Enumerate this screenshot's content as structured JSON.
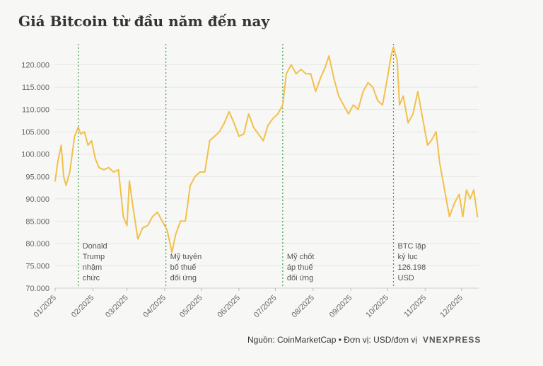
{
  "chart_data": {
    "type": "line",
    "title": "Giá Bitcoin từ đầu năm đến nay",
    "source": "Nguồn: CoinMarketCap • Đơn vị: USD/đơn vị",
    "logo_text": "VnExpress",
    "ylim": [
      70000,
      125000
    ],
    "yticks": [
      70000,
      75000,
      80000,
      85000,
      90000,
      95000,
      100000,
      105000,
      110000,
      115000,
      120000
    ],
    "ytick_labels": [
      "70.000",
      "75.000",
      "80.000",
      "85.000",
      "90.000",
      "95.000",
      "100.000",
      "105.000",
      "110.000",
      "115.000",
      "120.000"
    ],
    "xticks": [
      "2025-01-01",
      "2025-02-01",
      "2025-03-01",
      "2025-04-01",
      "2025-05-01",
      "2025-06-01",
      "2025-07-01",
      "2025-08-01",
      "2025-09-01",
      "2025-10-01",
      "2025-11-01",
      "2025-12-01"
    ],
    "xtick_labels": [
      "01/2025",
      "02/2025",
      "03/2025",
      "04/2025",
      "05/2025",
      "06/2025",
      "07/2025",
      "08/2025",
      "09/2025",
      "10/2025",
      "11/2025",
      "12/2025"
    ],
    "xlim": [
      "2025-01-01",
      "2025-12-15"
    ],
    "line_color": "#f2c04a",
    "annotation_line_color": "#3a9a4a",
    "series": [
      {
        "x": [
          "2025-01-01",
          "2025-01-03",
          "2025-01-06",
          "2025-01-08",
          "2025-01-10",
          "2025-01-13",
          "2025-01-15",
          "2025-01-17",
          "2025-01-20",
          "2025-01-22",
          "2025-01-25",
          "2025-01-28",
          "2025-01-31",
          "2025-02-03",
          "2025-02-06",
          "2025-02-10",
          "2025-02-14",
          "2025-02-18",
          "2025-02-22",
          "2025-02-26",
          "2025-03-01",
          "2025-03-03",
          "2025-03-06",
          "2025-03-10",
          "2025-03-14",
          "2025-03-18",
          "2025-03-22",
          "2025-03-26",
          "2025-03-30",
          "2025-04-03",
          "2025-04-07",
          "2025-04-10",
          "2025-04-14",
          "2025-04-18",
          "2025-04-22",
          "2025-04-26",
          "2025-04-30",
          "2025-05-04",
          "2025-05-08",
          "2025-05-12",
          "2025-05-16",
          "2025-05-20",
          "2025-05-24",
          "2025-05-28",
          "2025-06-01",
          "2025-06-05",
          "2025-06-09",
          "2025-06-13",
          "2025-06-17",
          "2025-06-21",
          "2025-06-25",
          "2025-06-29",
          "2025-07-03",
          "2025-07-07",
          "2025-07-10",
          "2025-07-14",
          "2025-07-18",
          "2025-07-22",
          "2025-07-26",
          "2025-07-30",
          "2025-08-03",
          "2025-08-07",
          "2025-08-11",
          "2025-08-14",
          "2025-08-18",
          "2025-08-22",
          "2025-08-26",
          "2025-08-30",
          "2025-09-03",
          "2025-09-07",
          "2025-09-11",
          "2025-09-15",
          "2025-09-19",
          "2025-09-23",
          "2025-09-27",
          "2025-10-01",
          "2025-10-04",
          "2025-10-06",
          "2025-10-09",
          "2025-10-11",
          "2025-10-14",
          "2025-10-18",
          "2025-10-22",
          "2025-10-26",
          "2025-10-30",
          "2025-11-03",
          "2025-11-06",
          "2025-11-10",
          "2025-11-13",
          "2025-11-17",
          "2025-11-21",
          "2025-11-25",
          "2025-11-29",
          "2025-12-02",
          "2025-12-05",
          "2025-12-08",
          "2025-12-11",
          "2025-12-14"
        ],
        "y": [
          94000,
          98000,
          102000,
          95000,
          93000,
          96000,
          100000,
          104000,
          106000,
          104500,
          105000,
          102000,
          103000,
          99000,
          97000,
          96500,
          97000,
          96000,
          96500,
          86000,
          84000,
          94000,
          88000,
          81000,
          83500,
          84000,
          86000,
          87000,
          85000,
          83000,
          78000,
          82000,
          85000,
          85000,
          93000,
          95000,
          96000,
          96000,
          103000,
          104000,
          105000,
          107000,
          109500,
          107000,
          104000,
          104500,
          109000,
          106000,
          104500,
          103000,
          106500,
          108000,
          109000,
          111000,
          118000,
          120000,
          118000,
          119000,
          118000,
          118000,
          114000,
          117000,
          119500,
          122000,
          117000,
          113000,
          111000,
          109000,
          111000,
          110000,
          114000,
          116000,
          115000,
          112000,
          111000,
          117000,
          122000,
          124000,
          121000,
          111000,
          113000,
          107000,
          109000,
          114000,
          108000,
          102000,
          103000,
          105000,
          98000,
          92000,
          86000,
          89000,
          91000,
          86000,
          92000,
          90000,
          92000,
          86000
        ]
      }
    ],
    "annotations": [
      {
        "date": "2025-01-20",
        "lines": [
          "Donald",
          "Trump",
          "nhậm",
          "chức"
        ]
      },
      {
        "date": "2025-04-02",
        "lines": [
          "Mỹ tuyên",
          "bố thuế",
          "đối ứng"
        ]
      },
      {
        "date": "2025-07-07",
        "lines": [
          "Mỹ chốt",
          "áp thuế",
          "đối ứng"
        ]
      },
      {
        "date": "2025-10-06",
        "lines": [
          "BTC lập",
          "kỷ lục",
          "126.198",
          "USD"
        ]
      }
    ]
  }
}
